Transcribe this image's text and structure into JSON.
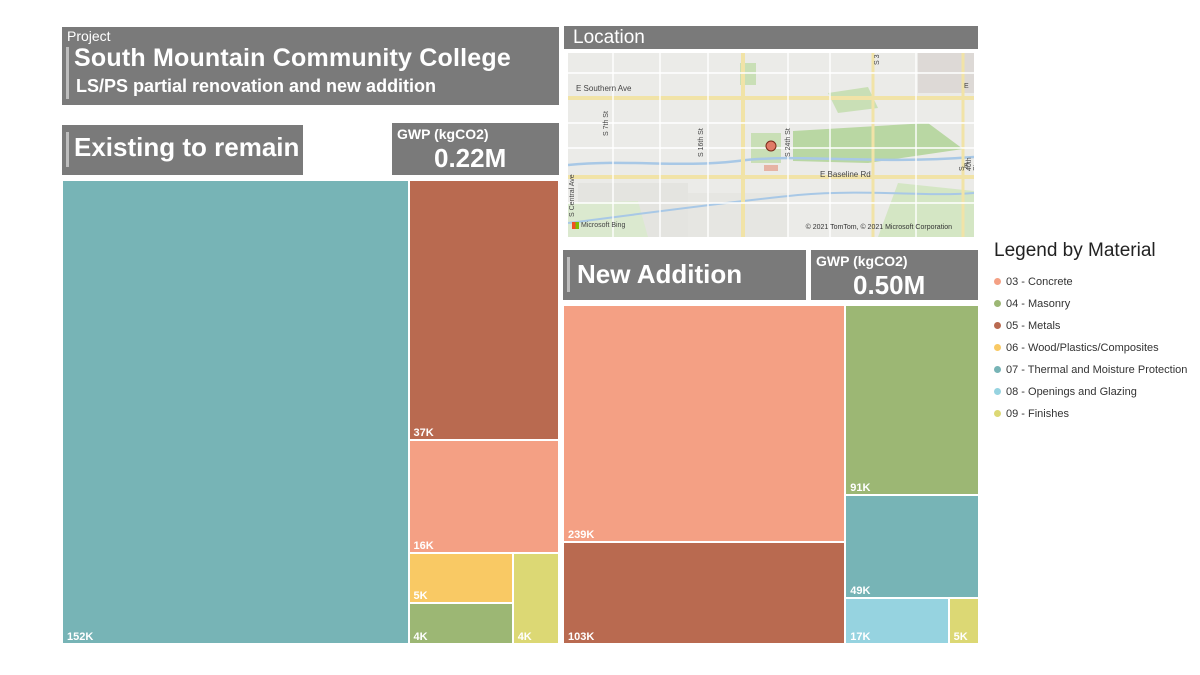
{
  "project": {
    "label": "Project",
    "title": "South Mountain Community College",
    "subtitle": "LS/PS partial renovation and new addition"
  },
  "location": {
    "title": "Location",
    "map_labels": [
      "E Southern Ave",
      "E Baseline Rd",
      "S 7th St",
      "S 16th St",
      "S 24th St",
      "S Central Ave",
      "S 40th St",
      "S 3",
      "E",
      "E"
    ],
    "attribution": "© 2021 TomTom, © 2021 Microsoft Corporation",
    "provider": "Microsoft Bing"
  },
  "existing": {
    "title": "Existing to remain",
    "gwp_label": "GWP (kgCO2)",
    "gwp_value": "0.22M"
  },
  "addition": {
    "title": "New Addition",
    "gwp_label": "GWP (kgCO2)",
    "gwp_value": "0.50M"
  },
  "colors": {
    "03": "#f4a084",
    "04": "#9cb774",
    "05": "#b96a50",
    "06": "#f9c964",
    "07": "#77b4b6",
    "08": "#96d3e0",
    "09": "#dcd874",
    "panel": "#7a7a7a"
  },
  "legend": {
    "title": "Legend by Material",
    "items": [
      {
        "code": "03",
        "label": "03 - Concrete"
      },
      {
        "code": "04",
        "label": "04 - Masonry"
      },
      {
        "code": "05",
        "label": "05 - Metals"
      },
      {
        "code": "06",
        "label": "06 - Wood/Plastics/Composites"
      },
      {
        "code": "07",
        "label": "07 - Thermal and Moisture Protection"
      },
      {
        "code": "08",
        "label": "08 - Openings and Glazing"
      },
      {
        "code": "09",
        "label": "09 - Finishes"
      }
    ]
  },
  "chart_data": [
    {
      "type": "treemap",
      "title": "Existing to remain",
      "unit": "kgCO2",
      "total": "0.22M",
      "items": [
        {
          "material": "07 - Thermal and Moisture Protection",
          "code": "07",
          "value": 152000,
          "label": "152K"
        },
        {
          "material": "05 - Metals",
          "code": "05",
          "value": 37000,
          "label": "37K"
        },
        {
          "material": "03 - Concrete",
          "code": "03",
          "value": 16000,
          "label": "16K"
        },
        {
          "material": "06 - Wood/Plastics/Composites",
          "code": "06",
          "value": 5000,
          "label": "5K"
        },
        {
          "material": "04 - Masonry",
          "code": "04",
          "value": 4000,
          "label": "4K"
        },
        {
          "material": "09 - Finishes",
          "code": "09",
          "value": 4000,
          "label": "4K"
        }
      ]
    },
    {
      "type": "treemap",
      "title": "New Addition",
      "unit": "kgCO2",
      "total": "0.50M",
      "items": [
        {
          "material": "03 - Concrete",
          "code": "03",
          "value": 239000,
          "label": "239K"
        },
        {
          "material": "05 - Metals",
          "code": "05",
          "value": 103000,
          "label": "103K"
        },
        {
          "material": "04 - Masonry",
          "code": "04",
          "value": 91000,
          "label": "91K"
        },
        {
          "material": "07 - Thermal and Moisture Protection",
          "code": "07",
          "value": 49000,
          "label": "49K"
        },
        {
          "material": "08 - Openings and Glazing",
          "code": "08",
          "value": 17000,
          "label": "17K"
        },
        {
          "material": "09 - Finishes",
          "code": "09",
          "value": 5000,
          "label": "5K"
        }
      ]
    }
  ]
}
